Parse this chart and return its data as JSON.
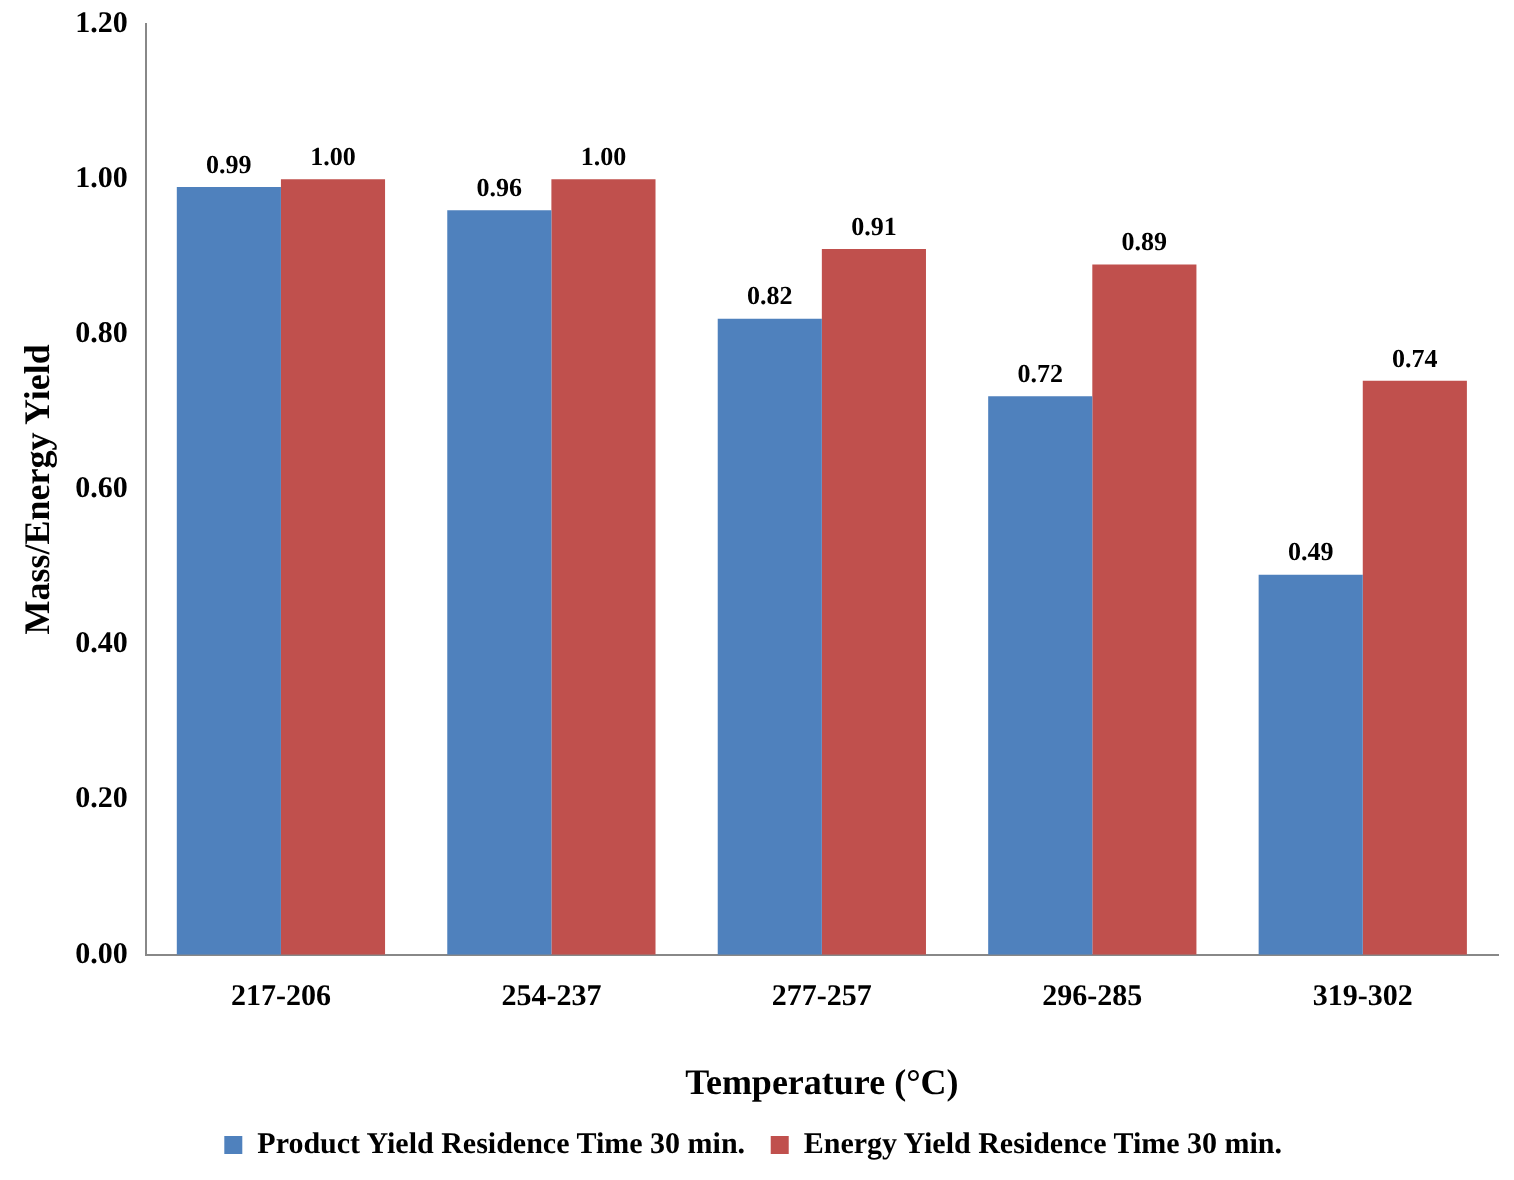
{
  "chart_data": {
    "type": "bar",
    "xlabel": "Temperature (°C)",
    "ylabel": "Mass/Energy Yield",
    "categories": [
      "217-206",
      "254-237",
      "277-257",
      "296-285",
      "319-302"
    ],
    "series": [
      {
        "name": "Product Yield Residence Time 30 min.",
        "color": "#4f81bd",
        "values": [
          0.99,
          0.96,
          0.82,
          0.72,
          0.49
        ],
        "value_labels": [
          "0.99",
          "0.96",
          "0.82",
          "0.72",
          "0.49"
        ]
      },
      {
        "name": "Energy Yield Residence Time 30 min.",
        "color": "#c0504d",
        "values": [
          1.0,
          1.0,
          0.91,
          0.89,
          0.74
        ],
        "value_labels": [
          "1.00",
          "1.00",
          "0.91",
          "0.89",
          "0.74"
        ]
      }
    ],
    "ylim": [
      0,
      1.2
    ],
    "yticks": [
      {
        "value": 0,
        "label": "0.00"
      },
      {
        "value": 0.2,
        "label": "0.20"
      },
      {
        "value": 0.4,
        "label": "0.40"
      },
      {
        "value": 0.6,
        "label": "0.60"
      },
      {
        "value": 0.8,
        "label": "0.80"
      },
      {
        "value": 1.0,
        "label": "1.00"
      },
      {
        "value": 1.2,
        "label": "1.20"
      }
    ],
    "grid": false,
    "legend": "bottom"
  }
}
